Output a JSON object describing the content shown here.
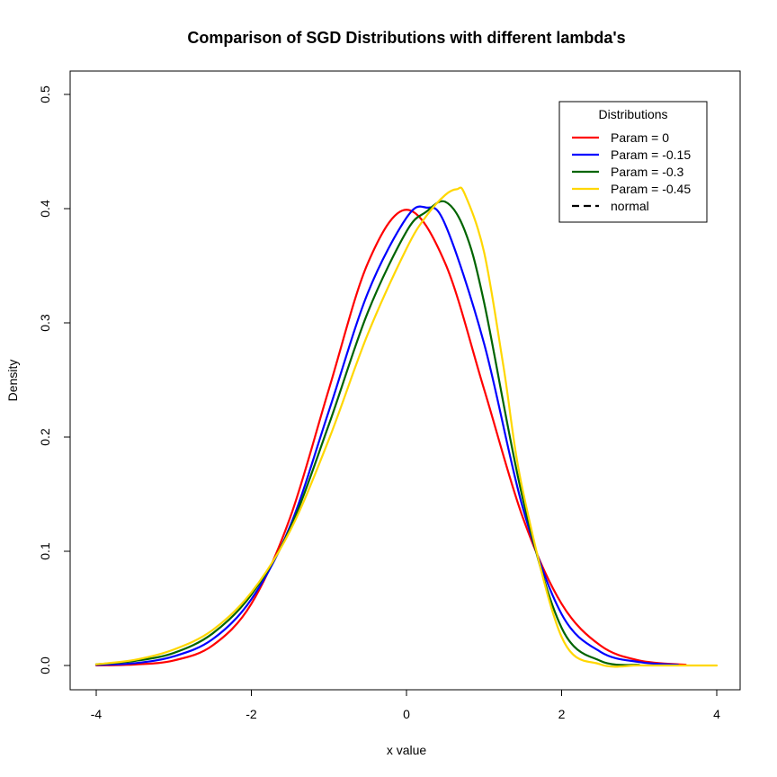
{
  "chart_data": {
    "type": "line",
    "title": "Comparison of SGD Distributions with different lambda's",
    "xlabel": "x value",
    "ylabel": "Density",
    "xlim": [
      -4,
      4
    ],
    "ylim": [
      0,
      0.5
    ],
    "x_ticks": [
      -4,
      -2,
      0,
      2,
      4
    ],
    "x_tick_labels": [
      "-4",
      "-2",
      "0",
      "2",
      "4"
    ],
    "y_ticks": [
      0.0,
      0.1,
      0.2,
      0.3,
      0.4,
      0.5
    ],
    "y_tick_labels": [
      "0.0",
      "0.1",
      "0.2",
      "0.3",
      "0.4",
      "0.5"
    ],
    "grid": false,
    "legend": {
      "title": "Distributions",
      "position": "top-right",
      "entries": [
        {
          "label": "Param = 0",
          "color": "#ff0000",
          "style": "solid"
        },
        {
          "label": "Param = -0.15",
          "color": "#0000ff",
          "style": "solid"
        },
        {
          "label": "Param = -0.3",
          "color": "#006400",
          "style": "solid"
        },
        {
          "label": "Param = -0.45",
          "color": "#ffd700",
          "style": "solid"
        },
        {
          "label": "normal",
          "color": "#000000",
          "style": "dashed"
        }
      ]
    },
    "series": [
      {
        "name": "Param = 0",
        "color": "#ff0000",
        "x": [
          -4.0,
          -3.5,
          -3.0,
          -2.5,
          -2.0,
          -1.5,
          -1.0,
          -0.5,
          0.0,
          0.5,
          1.0,
          1.5,
          2.0,
          2.5,
          3.0,
          3.6
        ],
        "y": [
          0.0001,
          0.0009,
          0.0044,
          0.0175,
          0.054,
          0.1295,
          0.242,
          0.352,
          0.399,
          0.352,
          0.242,
          0.1295,
          0.054,
          0.0175,
          0.0044,
          0.0006
        ]
      },
      {
        "name": "Param = -0.15",
        "color": "#0000ff",
        "x": [
          -4.0,
          -3.5,
          -3.0,
          -2.5,
          -2.0,
          -1.5,
          -1.0,
          -0.5,
          0.0,
          0.25,
          0.5,
          1.0,
          1.5,
          2.0,
          2.5,
          3.0,
          3.5
        ],
        "y": [
          0.0005,
          0.002,
          0.008,
          0.023,
          0.058,
          0.122,
          0.223,
          0.326,
          0.392,
          0.401,
          0.386,
          0.282,
          0.138,
          0.045,
          0.012,
          0.003,
          0.0006
        ]
      },
      {
        "name": "Param = -0.3",
        "color": "#006400",
        "x": [
          -4.0,
          -3.5,
          -3.0,
          -2.5,
          -2.0,
          -1.5,
          -1.0,
          -0.5,
          0.0,
          0.25,
          0.5,
          0.75,
          1.0,
          1.5,
          2.0,
          2.5,
          3.0
        ],
        "y": [
          0.001,
          0.004,
          0.011,
          0.028,
          0.062,
          0.12,
          0.211,
          0.309,
          0.38,
          0.397,
          0.406,
          0.381,
          0.318,
          0.146,
          0.033,
          0.004,
          0.0005
        ]
      },
      {
        "name": "Param = -0.45",
        "color": "#ffd700",
        "x": [
          -4.0,
          -3.5,
          -3.0,
          -2.5,
          -2.0,
          -1.5,
          -1.0,
          -0.5,
          0.0,
          0.25,
          0.5,
          0.65,
          0.75,
          1.0,
          1.25,
          1.5,
          2.0,
          2.5,
          3.0,
          3.5,
          4.0
        ],
        "y": [
          0.001,
          0.005,
          0.014,
          0.031,
          0.064,
          0.118,
          0.198,
          0.29,
          0.365,
          0.393,
          0.412,
          0.417,
          0.413,
          0.362,
          0.262,
          0.153,
          0.025,
          0.001,
          0.0001,
          0.0,
          0.0
        ]
      }
    ]
  }
}
